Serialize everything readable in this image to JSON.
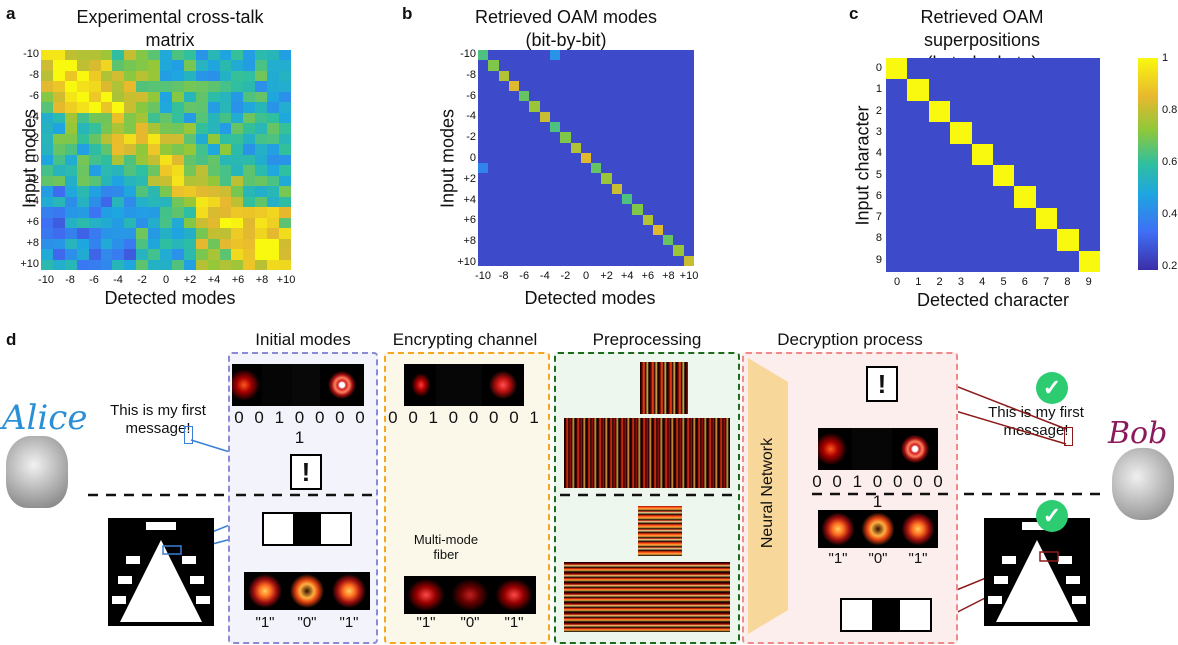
{
  "panel_a": {
    "label": "a",
    "title_line1": "Experimental cross-talk",
    "title_line2": "matrix",
    "xlabel": "Detected modes",
    "ylabel": "Input modes"
  },
  "panel_b": {
    "label": "b",
    "title_line1": "Retrieved OAM modes",
    "title_line2": "(bit-by-bit)",
    "xlabel": "Detected modes",
    "ylabel": "Input modes"
  },
  "panel_c": {
    "label": "c",
    "title_line1": "Retrieved OAM superpositions",
    "title_line2": "(byte-by-byte)",
    "xlabel": "Detected character",
    "ylabel": "Input character"
  },
  "mode_ticks_y": [
    "-10",
    "-8",
    "-6",
    "-4",
    "-2",
    "0",
    "+2",
    "+4",
    "+6",
    "+8",
    "+10"
  ],
  "mode_ticks_x": [
    "-10",
    "-8",
    "-6",
    "-4",
    "-2",
    "0",
    "+2",
    "+4",
    "+6",
    "+8",
    "+10"
  ],
  "char_ticks": [
    "0",
    "1",
    "2",
    "3",
    "4",
    "5",
    "6",
    "7",
    "8",
    "9"
  ],
  "colorbar_ticks": [
    "1",
    "0.8",
    "0.6",
    "0.4",
    "0.2"
  ],
  "colors": {
    "low": "#3b2ea8",
    "high": "#f9f80f",
    "panel_blue": "#8a8ad6",
    "panel_orange": "#f5a623",
    "panel_green": "#1e6b1e",
    "panel_red": "#f08a8a",
    "arrow": "#e02020",
    "nn": "#f7d79a",
    "check": "#2ecc71",
    "alice": "#2a8fd6",
    "bob": "#8b1a5c"
  },
  "panel_d": {
    "label": "d",
    "alice": "Alice",
    "bob": "Bob",
    "message_line1": "This is my first",
    "message_line2": "message!",
    "exclamation": "!",
    "bits": "0 0 1 0 0 0 0 1",
    "initial_title": "Initial modes",
    "encrypt_title": "Encrypting channel",
    "preproc_title": "Preprocessing",
    "decrypt_title": "Decryption process",
    "fiber_label_line1": "Multi-mode",
    "fiber_label_line2": "fiber",
    "neural_network": "Neural Network",
    "q1": "\"1\"",
    "q0": "\"0\"",
    "q1b": "\"1\""
  },
  "chart_data": [
    {
      "type": "heatmap",
      "title": "Experimental cross-talk matrix",
      "xlabel": "Detected modes",
      "ylabel": "Input modes",
      "x": [
        -10,
        -9,
        -8,
        -7,
        -6,
        -5,
        -4,
        -3,
        -2,
        -1,
        0,
        1,
        2,
        3,
        4,
        5,
        6,
        7,
        8,
        9,
        10
      ],
      "y": [
        -10,
        -9,
        -8,
        -7,
        -6,
        -5,
        -4,
        -3,
        -2,
        -1,
        0,
        1,
        2,
        3,
        4,
        5,
        6,
        7,
        8,
        9,
        10
      ],
      "values": "diffuse cross-talk, higher near diagonal (0.3-0.9)"
    },
    {
      "type": "heatmap",
      "title": "Retrieved OAM modes (bit-by-bit)",
      "xlabel": "Detected modes",
      "ylabel": "Input modes",
      "values": "diagonal ~0.6-0.85, off-diagonal ~0.1"
    },
    {
      "type": "heatmap",
      "title": "Retrieved OAM superpositions (byte-by-byte)",
      "xlabel": "Detected character",
      "ylabel": "Input character",
      "values": "diagonal 1, off-diagonal ~0.12",
      "colorbar": [
        0.15,
        1
      ]
    }
  ]
}
